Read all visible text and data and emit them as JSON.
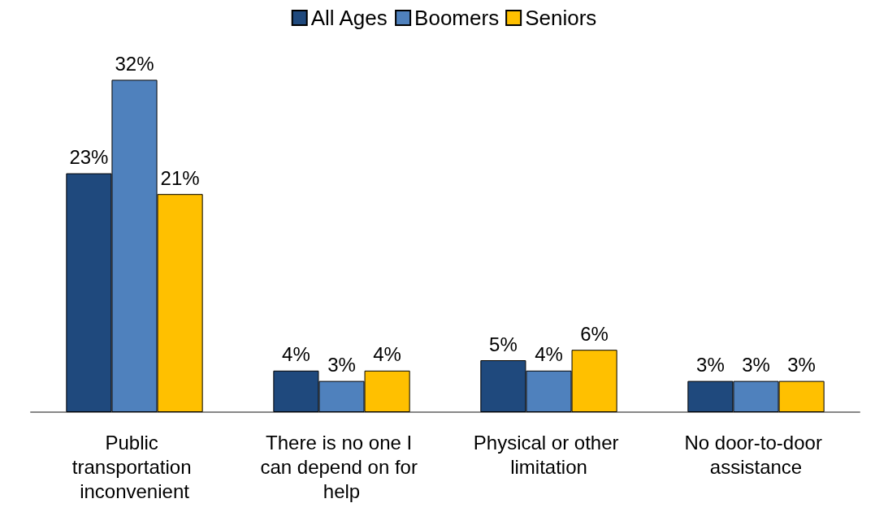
{
  "chart_data": {
    "type": "bar",
    "categories": [
      "Public transportation inconvenient",
      "There is no one I can depend on for help",
      "Physical or other limitation",
      "No door-to-door assistance"
    ],
    "series": [
      {
        "name": "All Ages",
        "color": "#1f497d",
        "values": [
          23,
          4,
          5,
          3
        ],
        "value_labels": [
          "23%",
          "4%",
          "5%",
          "3%"
        ]
      },
      {
        "name": "Boomers",
        "color": "#4f81bd",
        "values": [
          32,
          3,
          4,
          3
        ],
        "value_labels": [
          "32%",
          "3%",
          "4%",
          "3%"
        ]
      },
      {
        "name": "Seniors",
        "color": "#ffc000",
        "values": [
          21,
          4,
          6,
          3
        ],
        "value_labels": [
          "21%",
          "4%",
          "6%",
          "3%"
        ]
      }
    ],
    "legend": "top"
  }
}
